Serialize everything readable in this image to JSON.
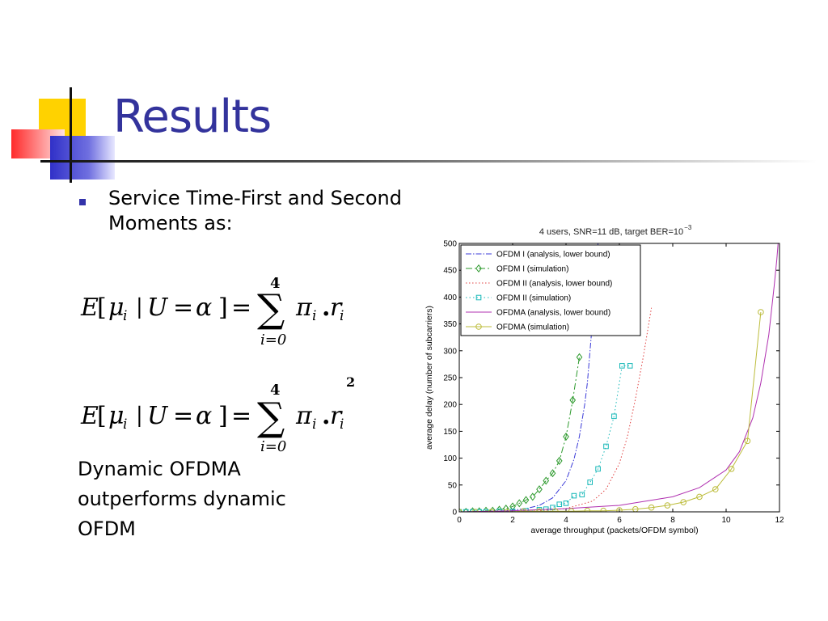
{
  "slide": {
    "title": "Results",
    "bullet": "Service Time-First and Second Moments as:",
    "conclusion": [
      "Dynamic OFDMA",
      "outperforms dynamic",
      "OFDM"
    ]
  },
  "formulas": [
    {
      "lhs_E": "E",
      "lhs_open": "[",
      "lhs_mu": "μ",
      "lhs_sub": "i",
      "lhs_bar": "|",
      "lhs_U": "U",
      "lhs_eq": "=",
      "lhs_alpha": "α",
      "lhs_close": "]",
      "eq": "=",
      "sum_upper": "4",
      "sum_lower": "i=0",
      "sum": "∑",
      "pi": "π",
      "pi_sub": "i",
      "dot": ".",
      "r": "r",
      "r_sub": "i",
      "power": ""
    },
    {
      "lhs_E": "E",
      "lhs_open": "[",
      "lhs_mu": "μ",
      "lhs_sub": "i",
      "lhs_bar": "|",
      "lhs_U": "U",
      "lhs_eq": "=",
      "lhs_alpha": "α",
      "lhs_close": "]",
      "eq": "=",
      "sum_upper": "4",
      "sum_lower": "i=0",
      "sum": "∑",
      "pi": "π",
      "pi_sub": "i",
      "dot": ".",
      "r": "r",
      "r_sub": "i",
      "power": "2"
    }
  ],
  "chart_data": {
    "type": "line",
    "title": "4 users, SNR=11 dB, target BER=10",
    "title_sup": "−3",
    "xlabel": "average throughput (packets/OFDM symbol)",
    "ylabel": "average delay (number of subcarriers)",
    "xlim": [
      0,
      12
    ],
    "ylim": [
      0,
      500
    ],
    "xticks": [
      0,
      2,
      4,
      6,
      8,
      10,
      12
    ],
    "yticks": [
      0,
      50,
      100,
      150,
      200,
      250,
      300,
      350,
      400,
      450,
      500
    ],
    "grid": false,
    "legend": "top-left",
    "series": [
      {
        "name": "OFDM I (analysis, lower bound)",
        "color": "#3b3bd8",
        "dash": "7,2,1.5,2",
        "marker": "none",
        "x": [
          0,
          0.5,
          1,
          1.5,
          2,
          2.5,
          3,
          3.5,
          4,
          4.3,
          4.5,
          4.7,
          4.8,
          4.9,
          5.0,
          5.05,
          5.1,
          5.15,
          5.2,
          5.3
        ],
        "y": [
          0,
          0.3,
          0.8,
          1.5,
          3,
          6,
          12,
          26,
          58,
          98,
          140,
          200,
          240,
          300,
          360,
          400,
          440,
          480,
          500,
          520
        ]
      },
      {
        "name": "OFDM I (simulation)",
        "color": "#2e9a2e",
        "dash": "8,3,2,3",
        "marker": "diamond",
        "x": [
          0,
          0.25,
          0.5,
          0.75,
          1,
          1.25,
          1.5,
          1.75,
          2,
          2.25,
          2.5,
          2.75,
          3,
          3.25,
          3.5,
          3.75,
          4,
          4.25,
          4.5
        ],
        "y": [
          0,
          0,
          1,
          1,
          2,
          2,
          4,
          6,
          10,
          16,
          22,
          28,
          42,
          58,
          72,
          95,
          140,
          208,
          288
        ]
      },
      {
        "name": "OFDM II (analysis, lower bound)",
        "color": "#e04040",
        "dash": "1.5,2.5",
        "marker": "none",
        "x": [
          0,
          1,
          2,
          3,
          4,
          5,
          5.5,
          6,
          6.3,
          6.6,
          6.9,
          7.1,
          7.2
        ],
        "y": [
          0,
          0.3,
          1,
          2,
          6,
          20,
          42,
          90,
          140,
          210,
          290,
          350,
          380
        ]
      },
      {
        "name": "OFDM II (simulation)",
        "color": "#18b8b8",
        "dash": "1.5,3",
        "marker": "square",
        "x": [
          0,
          0.25,
          0.5,
          0.75,
          1,
          1.5,
          2,
          2.5,
          3,
          3.25,
          3.5,
          3.75,
          4,
          4.3,
          4.6,
          4.9,
          5.2,
          5.5,
          5.8,
          6.1,
          6.4
        ],
        "y": [
          0,
          0,
          0,
          0,
          0,
          1,
          1,
          2,
          4,
          5,
          8,
          14,
          16,
          30,
          32,
          55,
          80,
          122,
          178,
          272,
          272
        ]
      },
      {
        "name": "OFDMA (analysis, lower bound)",
        "color": "#b030b0",
        "dash": "",
        "marker": "none",
        "x": [
          0,
          2,
          4,
          6,
          8,
          9,
          10,
          10.5,
          11,
          11.3,
          11.6,
          11.8,
          11.9,
          11.95
        ],
        "y": [
          0,
          2,
          6,
          12,
          28,
          45,
          78,
          112,
          175,
          240,
          330,
          420,
          470,
          500
        ]
      },
      {
        "name": "OFDMA (simulation)",
        "color": "#bcbc3a",
        "dash": "",
        "marker": "circle",
        "x": [
          0,
          0.6,
          1.2,
          1.8,
          2.4,
          3,
          3.6,
          4.2,
          4.8,
          5.4,
          6,
          6.6,
          7.2,
          7.8,
          8.4,
          9,
          9.6,
          10.2,
          10.8,
          11.3
        ],
        "y": [
          0,
          0,
          0,
          0,
          1,
          1,
          1,
          1,
          2,
          2,
          3,
          5,
          8,
          12,
          18,
          28,
          42,
          80,
          132,
          372
        ]
      }
    ]
  }
}
